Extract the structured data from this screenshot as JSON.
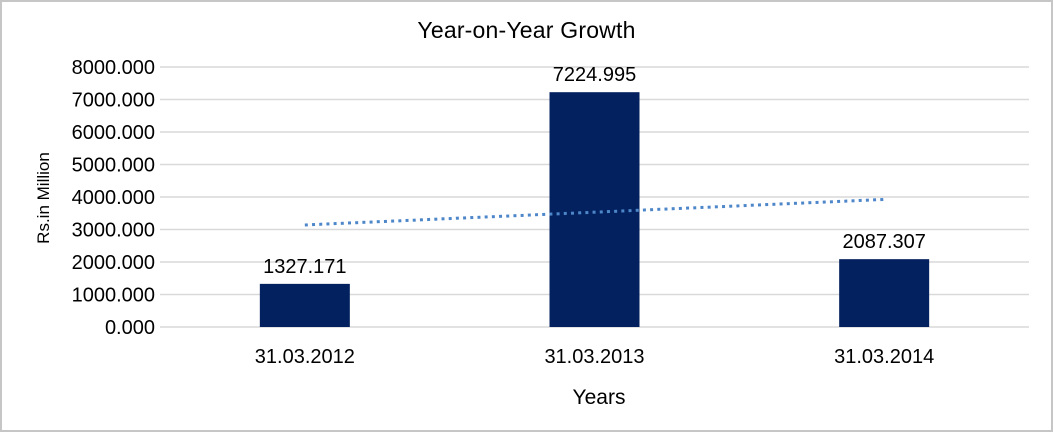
{
  "chart_data": {
    "type": "bar",
    "title": "Year-on-Year Growth",
    "xlabel": "Years",
    "ylabel": "Rs.in Million",
    "categories": [
      "31.03.2012",
      "31.03.2013",
      "31.03.2014"
    ],
    "values": [
      1327.171,
      7224.995,
      2087.307
    ],
    "data_labels": [
      "1327.171",
      "7224.995",
      "2087.307"
    ],
    "ylim": [
      0,
      8000
    ],
    "ytick_interval": 1000,
    "ytick_labels": [
      "0.000",
      "1000.000",
      "2000.000",
      "3000.000",
      "4000.000",
      "5000.000",
      "6000.000",
      "7000.000",
      "8000.000"
    ],
    "grid": "horizontal-only",
    "legend": "none",
    "trendline": {
      "type": "linear",
      "line_style": "dotted",
      "color": "#4E87C9",
      "start_value": 3140,
      "end_value": 3925
    },
    "colors": {
      "bar": "#03215E",
      "gridline": "#D9D9D9",
      "text": "#000000",
      "frame_border": "#C6C6C6",
      "background": "#FFFFFF"
    }
  }
}
